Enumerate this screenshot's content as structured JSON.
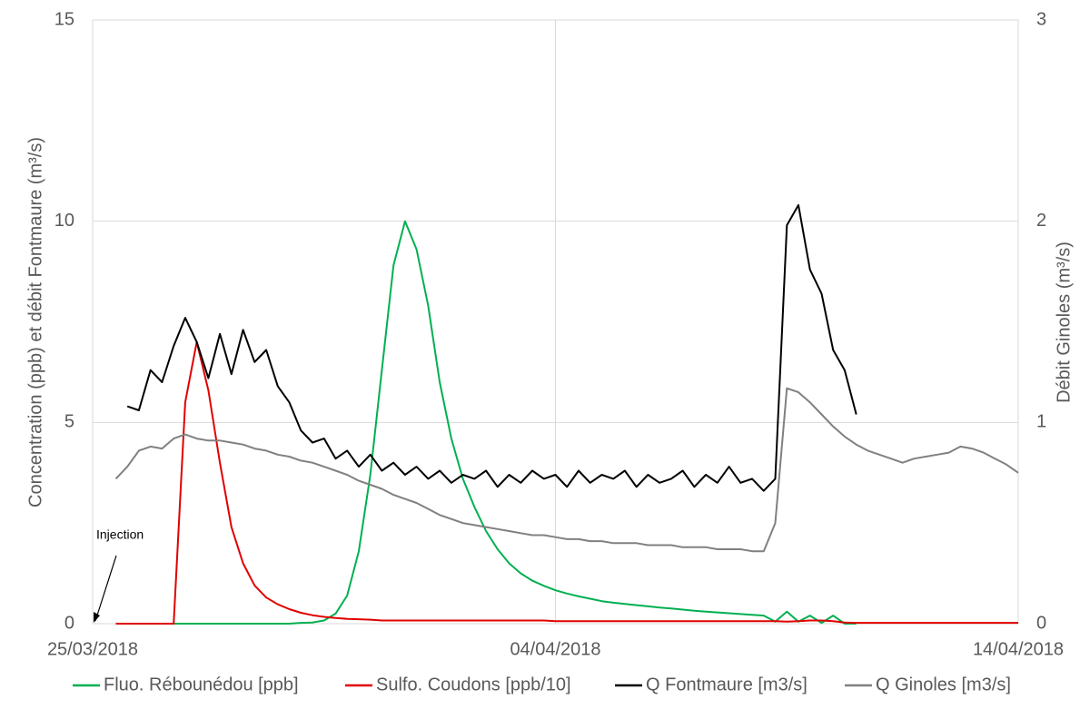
{
  "chart_data": {
    "type": "line",
    "y_label": "Concentration (ppb) et débit Fontmaure (m³/s)",
    "y2_label": "Débit Ginoles (m³/s)",
    "annotation": "Injection",
    "annotation_x": "2018-03-25T00:00",
    "xlim": [
      "2018-03-25T00:00",
      "2018-04-14T00:00"
    ],
    "xticks": [
      {
        "value": "2018-03-25T00:00",
        "label": "25/03/2018"
      },
      {
        "value": "2018-04-04T00:00",
        "label": "04/04/2018"
      },
      {
        "value": "2018-04-14T00:00",
        "label": "14/04/2018"
      }
    ],
    "ylim": [
      0,
      15
    ],
    "yticks": [
      0,
      5,
      10,
      15
    ],
    "y2lim": [
      0,
      3
    ],
    "y2ticks": [
      0,
      1,
      2,
      3
    ],
    "grid": true,
    "legend": "bottom",
    "x": [
      "2018-03-25T12:00",
      "2018-03-25T18:00",
      "2018-03-26T00:00",
      "2018-03-26T06:00",
      "2018-03-26T12:00",
      "2018-03-26T18:00",
      "2018-03-27T00:00",
      "2018-03-27T06:00",
      "2018-03-27T12:00",
      "2018-03-27T18:00",
      "2018-03-28T00:00",
      "2018-03-28T06:00",
      "2018-03-28T12:00",
      "2018-03-28T18:00",
      "2018-03-29T00:00",
      "2018-03-29T06:00",
      "2018-03-29T12:00",
      "2018-03-29T18:00",
      "2018-03-30T00:00",
      "2018-03-30T06:00",
      "2018-03-30T12:00",
      "2018-03-30T18:00",
      "2018-03-31T00:00",
      "2018-03-31T06:00",
      "2018-03-31T12:00",
      "2018-03-31T18:00",
      "2018-04-01T00:00",
      "2018-04-01T06:00",
      "2018-04-01T12:00",
      "2018-04-01T18:00",
      "2018-04-02T00:00",
      "2018-04-02T06:00",
      "2018-04-02T12:00",
      "2018-04-02T18:00",
      "2018-04-03T00:00",
      "2018-04-03T06:00",
      "2018-04-03T12:00",
      "2018-04-03T18:00",
      "2018-04-04T00:00",
      "2018-04-04T06:00",
      "2018-04-04T12:00",
      "2018-04-04T18:00",
      "2018-04-05T00:00",
      "2018-04-05T06:00",
      "2018-04-05T12:00",
      "2018-04-05T18:00",
      "2018-04-06T00:00",
      "2018-04-06T06:00",
      "2018-04-06T12:00",
      "2018-04-06T18:00",
      "2018-04-07T00:00",
      "2018-04-07T06:00",
      "2018-04-07T12:00",
      "2018-04-07T18:00",
      "2018-04-08T00:00",
      "2018-04-08T06:00",
      "2018-04-08T12:00",
      "2018-04-08T18:00",
      "2018-04-09T00:00",
      "2018-04-09T06:00",
      "2018-04-09T12:00",
      "2018-04-09T18:00",
      "2018-04-10T00:00",
      "2018-04-10T06:00",
      "2018-04-10T12:00",
      "2018-04-10T18:00",
      "2018-04-11T00:00",
      "2018-04-11T06:00",
      "2018-04-11T12:00",
      "2018-04-11T18:00",
      "2018-04-12T00:00",
      "2018-04-12T06:00",
      "2018-04-12T12:00",
      "2018-04-12T18:00",
      "2018-04-13T00:00",
      "2018-04-13T06:00",
      "2018-04-13T12:00",
      "2018-04-13T18:00",
      "2018-04-14T00:00"
    ],
    "series": [
      {
        "name": "Fluo. Rébounédou [ppb]",
        "color": "#00b050",
        "values": [
          0,
          0,
          0,
          0,
          0,
          0,
          0,
          0,
          0,
          0,
          0,
          0,
          0,
          0,
          0,
          0,
          0.02,
          0.03,
          0.08,
          0.25,
          0.7,
          1.8,
          3.7,
          6.3,
          8.9,
          10.0,
          9.3,
          7.9,
          6.0,
          4.6,
          3.6,
          2.9,
          2.3,
          1.85,
          1.5,
          1.25,
          1.07,
          0.94,
          0.83,
          0.75,
          0.68,
          0.62,
          0.56,
          0.52,
          0.49,
          0.46,
          0.43,
          0.4,
          0.38,
          0.35,
          0.32,
          0.3,
          0.28,
          0.26,
          0.24,
          0.22,
          0.2,
          0.05,
          0.3,
          0.05,
          0.2,
          0.02,
          0.2,
          0,
          0,
          null,
          null,
          null,
          null,
          null,
          null,
          null,
          null,
          null,
          null,
          null,
          null,
          null,
          null
        ]
      },
      {
        "name": "Sulfo. Coudons [ppb/10]",
        "color": "#e00000",
        "values": [
          0,
          0,
          0,
          0,
          0,
          0,
          5.5,
          7.0,
          5.8,
          4.0,
          2.4,
          1.5,
          0.95,
          0.65,
          0.48,
          0.36,
          0.27,
          0.21,
          0.17,
          0.14,
          0.12,
          0.11,
          0.1,
          0.08,
          0.08,
          0.08,
          0.08,
          0.08,
          0.08,
          0.08,
          0.08,
          0.08,
          0.08,
          0.08,
          0.08,
          0.08,
          0.08,
          0.08,
          0.06,
          0.06,
          0.06,
          0.06,
          0.06,
          0.06,
          0.06,
          0.06,
          0.06,
          0.06,
          0.06,
          0.06,
          0.06,
          0.06,
          0.06,
          0.06,
          0.06,
          0.06,
          0.06,
          0.06,
          0.05,
          0.06,
          0.08,
          0.08,
          0.06,
          0.03,
          0.02,
          0.02,
          0.02,
          0.02,
          0.02,
          0.02,
          0.02,
          0.02,
          0.02,
          0.02,
          0.02,
          0.02,
          0.02,
          0.02,
          0.02
        ]
      },
      {
        "name": "Q Fontmaure [m3/s]",
        "color": "#000000",
        "values": [
          null,
          5.4,
          5.3,
          6.3,
          6.0,
          6.9,
          7.6,
          7.0,
          6.1,
          7.2,
          6.2,
          7.3,
          6.5,
          6.8,
          5.9,
          5.5,
          4.8,
          4.5,
          4.6,
          4.1,
          4.3,
          3.9,
          4.2,
          3.8,
          4.0,
          3.7,
          3.9,
          3.6,
          3.8,
          3.5,
          3.7,
          3.6,
          3.8,
          3.4,
          3.7,
          3.5,
          3.8,
          3.6,
          3.7,
          3.4,
          3.8,
          3.5,
          3.7,
          3.6,
          3.8,
          3.4,
          3.7,
          3.5,
          3.6,
          3.8,
          3.4,
          3.7,
          3.5,
          3.9,
          3.5,
          3.6,
          3.3,
          3.6,
          9.9,
          10.4,
          8.8,
          8.2,
          6.8,
          6.3,
          5.2,
          null,
          null,
          null,
          null,
          null,
          null,
          null,
          null,
          null,
          null,
          null,
          null,
          null,
          null
        ]
      },
      {
        "name": "Q Ginoles [m3/s]",
        "color": "#808080",
        "axis": "y2",
        "values": [
          0.72,
          0.78,
          0.86,
          0.88,
          0.87,
          0.92,
          0.94,
          0.92,
          0.91,
          0.91,
          0.9,
          0.89,
          0.87,
          0.86,
          0.84,
          0.83,
          0.81,
          0.8,
          0.78,
          0.76,
          0.74,
          0.71,
          0.69,
          0.67,
          0.64,
          0.62,
          0.6,
          0.57,
          0.54,
          0.52,
          0.5,
          0.49,
          0.48,
          0.47,
          0.46,
          0.45,
          0.44,
          0.44,
          0.43,
          0.42,
          0.42,
          0.41,
          0.41,
          0.4,
          0.4,
          0.4,
          0.39,
          0.39,
          0.39,
          0.38,
          0.38,
          0.38,
          0.37,
          0.37,
          0.37,
          0.36,
          0.36,
          0.5,
          1.17,
          1.15,
          1.1,
          1.04,
          0.98,
          0.93,
          0.89,
          0.86,
          0.84,
          0.82,
          0.8,
          0.82,
          0.83,
          0.84,
          0.85,
          0.88,
          0.87,
          0.85,
          0.82,
          0.79,
          0.75
        ]
      }
    ]
  }
}
